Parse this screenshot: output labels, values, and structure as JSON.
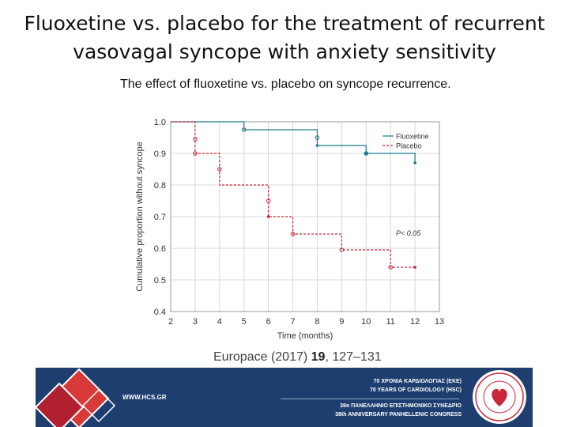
{
  "slide": {
    "title": "Fluoxetine vs. placebo for the treatment of recurrent vasovagal syncope with anxiety sensitivity",
    "caption": "The effect of fluoxetine vs. placebo on syncope recurrence.",
    "reference_journal": "Europace (2017)",
    "reference_volume": "19",
    "reference_pages": ", 127–131"
  },
  "footer": {
    "url": "WWW.HCS.GR",
    "line1": "70 ΧΡΟΝΙΑ ΚΑΡΔΙΟΛΟΓΙΑΣ (ΕΚΕ)",
    "line2": "70 YEARS OF CARDIOLOGY (HSC)",
    "line3": "38ο ΠΑΝΕΛΛΗΝΙΟ ΕΠΙΣΤΗΜΟΝΙΚΟ ΣΥΝΕΔΡΙΟ",
    "line4": "38th ANNIVERSARY PANHELLENIC CONGRESS",
    "colors": {
      "background": "#1d3e6e",
      "accent": "#d83a3a"
    }
  },
  "chart_data": {
    "type": "line",
    "xlabel": "Time (months)",
    "ylabel": "Cumulative proportion without syncope",
    "xlim": [
      2,
      13
    ],
    "ylim": [
      0.4,
      1.0
    ],
    "xticks": [
      2,
      3,
      4,
      5,
      6,
      7,
      8,
      9,
      10,
      11,
      12,
      13
    ],
    "yticks": [
      0.4,
      0.5,
      0.6,
      0.7,
      0.8,
      0.9,
      1.0
    ],
    "grid": true,
    "legend_position": "top-right",
    "annotation": "P< 0.05",
    "series": [
      {
        "name": "Fluoxetine",
        "color": "#1a7a8a",
        "step": [
          [
            2,
            1.0
          ],
          [
            5,
            1.0
          ],
          [
            5,
            0.975
          ],
          [
            8,
            0.975
          ],
          [
            8,
            0.925
          ],
          [
            10,
            0.925
          ],
          [
            10,
            0.9
          ],
          [
            12,
            0.9
          ],
          [
            12,
            0.87
          ]
        ],
        "censored": [
          [
            5,
            0.975
          ],
          [
            8,
            0.95
          ],
          [
            10,
            0.9
          ]
        ],
        "events": [
          [
            8,
            0.925
          ],
          [
            10,
            0.9
          ],
          [
            12,
            0.87
          ]
        ]
      },
      {
        "name": "Placebo",
        "color": "#c8283a",
        "step": [
          [
            2,
            1.0
          ],
          [
            3,
            1.0
          ],
          [
            3,
            0.9
          ],
          [
            4,
            0.9
          ],
          [
            4,
            0.8
          ],
          [
            6,
            0.8
          ],
          [
            6,
            0.7
          ],
          [
            7,
            0.7
          ],
          [
            7,
            0.645
          ],
          [
            9,
            0.645
          ],
          [
            9,
            0.595
          ],
          [
            11,
            0.595
          ],
          [
            11,
            0.54
          ],
          [
            12,
            0.54
          ]
        ],
        "censored": [
          [
            3,
            0.945
          ],
          [
            3,
            0.9
          ],
          [
            4,
            0.85
          ],
          [
            6,
            0.75
          ],
          [
            7,
            0.645
          ],
          [
            9,
            0.595
          ],
          [
            11,
            0.54
          ]
        ],
        "events": [
          [
            6,
            0.7
          ],
          [
            12,
            0.54
          ]
        ]
      }
    ]
  }
}
